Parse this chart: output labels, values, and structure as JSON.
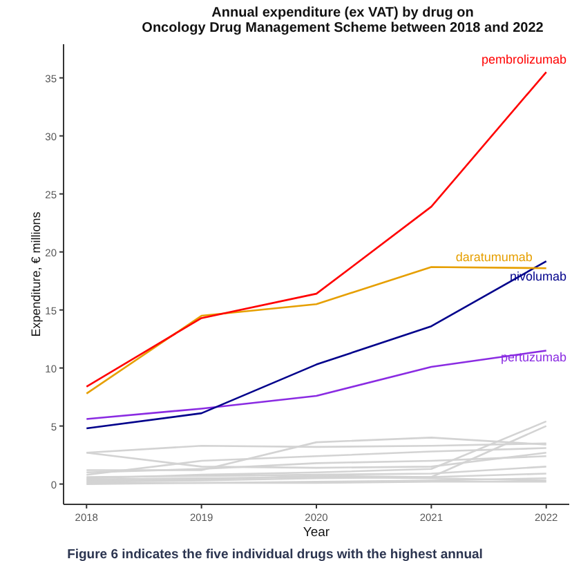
{
  "chart_data": {
    "type": "line",
    "title": "Annual expenditure (ex VAT) by drug on\nOncology Drug Management Scheme between 2018 and 2022",
    "xlabel": "Year",
    "ylabel": "Expenditure, € millions",
    "x": [
      2018,
      2019,
      2020,
      2021,
      2022
    ],
    "xlim": [
      2017.8,
      2022.2
    ],
    "xticks": [
      2018,
      2019,
      2020,
      2021,
      2022
    ],
    "ylim": [
      -1.75,
      37.9
    ],
    "yticks": [
      0,
      5,
      10,
      15,
      20,
      25,
      30,
      35
    ],
    "grid": false,
    "legend": false,
    "marker": "none",
    "line_style": "solid",
    "annotations": [
      "Figure 6 indicates the five individual drugs with the highest annual"
    ],
    "series": [
      {
        "color": "#d3d3d3",
        "values": [
          2.7,
          1.5,
          1.4,
          1.5,
          2.7
        ]
      },
      {
        "color": "#d3d3d3",
        "values": [
          2.7,
          3.3,
          3.2,
          3.3,
          3.5
        ]
      },
      {
        "color": "#d3d3d3",
        "values": [
          1.2,
          1.2,
          3.6,
          4.0,
          3.4
        ]
      },
      {
        "color": "#d3d3d3",
        "values": [
          0.8,
          2.0,
          2.4,
          2.8,
          3.1
        ]
      },
      {
        "color": "#d3d3d3",
        "values": [
          0.5,
          0.8,
          1.0,
          1.3,
          5.4
        ]
      },
      {
        "color": "#d3d3d3",
        "values": [
          0.3,
          0.4,
          0.7,
          0.6,
          5.0
        ]
      },
      {
        "color": "#d3d3d3",
        "values": [
          1.0,
          1.3,
          1.8,
          2.0,
          2.4
        ]
      },
      {
        "color": "#d3d3d3",
        "values": [
          0.6,
          0.7,
          0.8,
          0.9,
          1.5
        ]
      },
      {
        "color": "#d3d3d3",
        "values": [
          0.2,
          0.3,
          0.5,
          0.6,
          0.9
        ]
      },
      {
        "color": "#d3d3d3",
        "values": [
          0.1,
          0.1,
          0.2,
          0.3,
          0.5
        ]
      },
      {
        "color": "#d3d3d3",
        "values": [
          0.4,
          0.5,
          0.6,
          0.5,
          0.3
        ]
      },
      {
        "color": "#d3d3d3",
        "values": [
          0,
          0.1,
          0.1,
          0.2,
          0.2
        ]
      },
      {
        "name": "pertuzumab",
        "color": "#8a2be2",
        "values": [
          5.6,
          6.5,
          7.6,
          10.1,
          11.5
        ]
      },
      {
        "name": "nivolumab",
        "color": "#00008b",
        "values": [
          4.8,
          6.1,
          10.3,
          13.6,
          19.2
        ]
      },
      {
        "name": "daratumumab",
        "color": "#e69f00",
        "values": [
          7.8,
          14.5,
          15.5,
          18.7,
          18.6
        ]
      },
      {
        "name": "pembrolizumab",
        "color": "#ff0000",
        "values": [
          8.4,
          14.3,
          16.4,
          23.9,
          35.5
        ]
      }
    ]
  }
}
